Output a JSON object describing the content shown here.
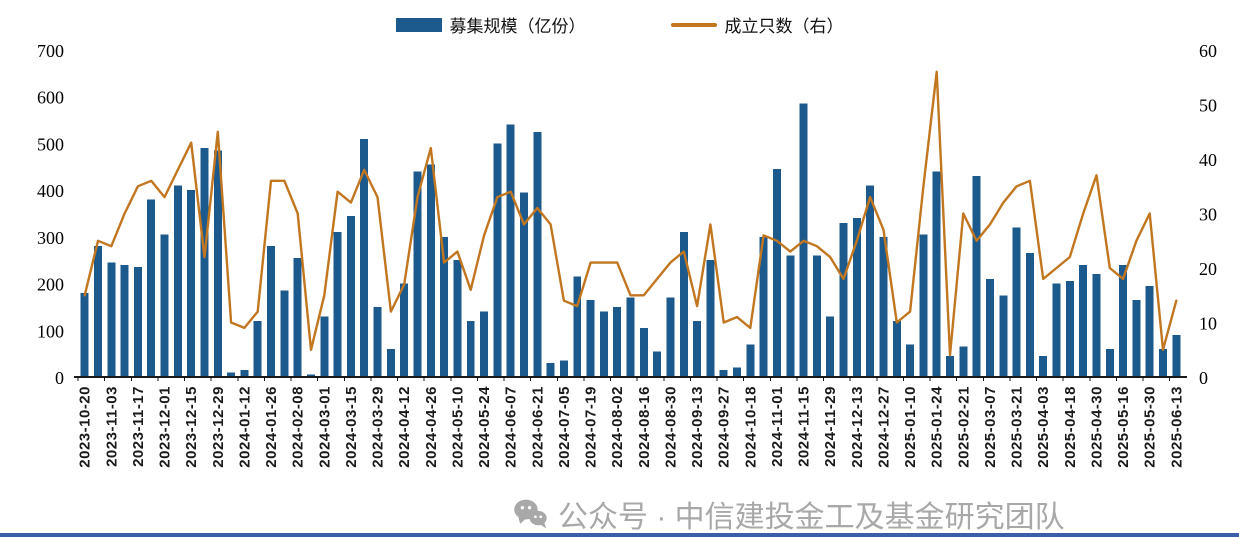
{
  "colors": {
    "bar": "#1c5a8d",
    "line": "#c1761f",
    "axis": "#1a1a1a",
    "watermark": "#a8a8a8",
    "divider": "#3c5ea9"
  },
  "legend": {
    "bar_label": "募集规模（亿份）",
    "line_label": "成立只数（右）"
  },
  "watermark": {
    "icon": "wechat-icon",
    "text": "公众号 · 中信建投金工及基金研究团队"
  },
  "chart_data": {
    "type": "bar+line",
    "title": "",
    "grid": "off",
    "legend_position": "top-center",
    "left_axis": {
      "min": 0,
      "max": 700,
      "step": 100,
      "ticks": [
        700,
        600,
        500,
        400,
        300,
        200,
        100,
        0
      ]
    },
    "right_axis": {
      "min": 0,
      "max": 60,
      "step": 10,
      "ticks": [
        60,
        50,
        40,
        30,
        20,
        10,
        0
      ]
    },
    "x_label_every_n_bars": 2,
    "x_labels": [
      "2023-10-20",
      "2023-11-03",
      "2023-11-17",
      "2023-12-01",
      "2023-12-15",
      "2023-12-29",
      "2024-01-12",
      "2024-01-26",
      "2024-02-08",
      "2024-03-01",
      "2024-03-15",
      "2024-03-29",
      "2024-04-12",
      "2024-04-26",
      "2024-05-10",
      "2024-05-24",
      "2024-06-07",
      "2024-06-21",
      "2024-07-05",
      "2024-07-19",
      "2024-08-02",
      "2024-08-16",
      "2024-08-30",
      "2024-09-13",
      "2024-09-27",
      "2024-10-18",
      "2024-11-01",
      "2024-11-15",
      "2024-11-29",
      "2024-12-13",
      "2024-12-27",
      "2025-01-10",
      "2025-01-24",
      "2025-02-21",
      "2025-03-07",
      "2025-03-21",
      "2025-04-03",
      "2025-04-18",
      "2025-04-30",
      "2025-05-16",
      "2025-05-30",
      "2025-06-13"
    ],
    "series": [
      {
        "name": "募集规模（亿份）",
        "type": "bar",
        "axis": "left",
        "values": [
          180,
          280,
          245,
          240,
          235,
          380,
          305,
          410,
          400,
          490,
          485,
          10,
          15,
          120,
          280,
          185,
          255,
          5,
          130,
          310,
          345,
          510,
          150,
          60,
          200,
          440,
          455,
          300,
          250,
          120,
          140,
          500,
          540,
          395,
          525,
          30,
          35,
          215,
          165,
          140,
          150,
          170,
          105,
          55,
          170,
          310,
          120,
          250,
          15,
          20,
          70,
          300,
          445,
          260,
          585,
          260,
          130,
          330,
          340,
          410,
          300,
          120,
          70,
          305,
          440,
          45,
          65,
          430,
          210,
          175,
          320,
          265,
          45,
          200,
          205,
          240,
          220,
          60,
          240,
          165,
          195,
          60,
          90
        ]
      },
      {
        "name": "成立只数（右）",
        "type": "line",
        "axis": "right",
        "values": [
          15,
          25,
          24,
          30,
          35,
          36,
          33,
          38,
          43,
          22,
          45,
          10,
          9,
          12,
          36,
          36,
          30,
          5,
          15,
          34,
          32,
          38,
          33,
          12,
          17,
          33,
          42,
          21,
          23,
          16,
          26,
          33,
          34,
          28,
          31,
          28,
          14,
          13,
          21,
          21,
          21,
          15,
          15,
          18,
          21,
          23,
          13,
          28,
          10,
          11,
          9,
          26,
          25,
          23,
          25,
          24,
          22,
          18,
          25,
          33,
          27,
          10,
          12,
          35,
          56,
          4,
          30,
          25,
          28,
          32,
          35,
          36,
          18,
          20,
          22,
          30,
          37,
          20,
          18,
          25,
          30,
          5,
          14
        ]
      }
    ]
  }
}
